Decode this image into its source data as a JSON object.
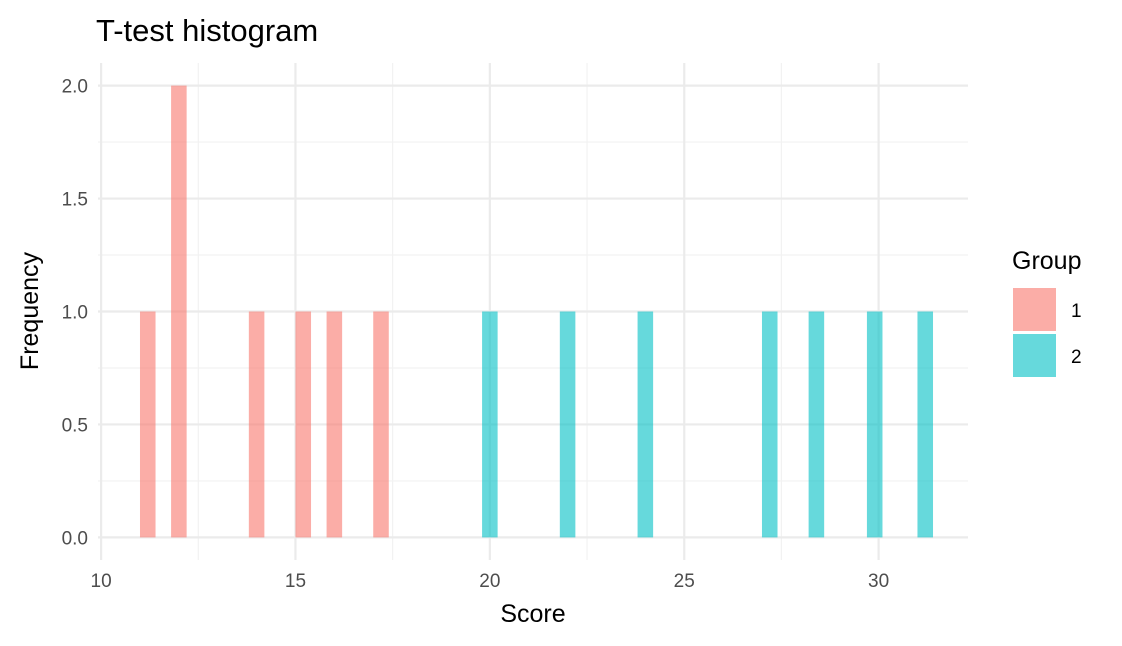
{
  "chart_data": {
    "type": "bar",
    "title": "T-test histogram",
    "xlabel": "Score",
    "ylabel": "Frequency",
    "xlim": [
      9.92,
      32.3
    ],
    "ylim": [
      -0.1,
      2.1
    ],
    "x_ticks": [
      10,
      15,
      20,
      25,
      30
    ],
    "x_minor_ticks": [
      12.5,
      17.5,
      22.5,
      27.5
    ],
    "y_ticks": [
      0.0,
      0.5,
      1.0,
      1.5,
      2.0
    ],
    "y_tick_labels": [
      "0.0",
      "0.5",
      "1.0",
      "1.5",
      "2.0"
    ],
    "y_minor_ticks": [
      0.25,
      0.75,
      1.25,
      1.75
    ],
    "bin_width": 0.4,
    "grid": true,
    "legend": {
      "title": "Group",
      "position": "right"
    },
    "series": [
      {
        "name": "1",
        "color": "#F8766D",
        "bins": [
          {
            "x": 11.2,
            "count": 1
          },
          {
            "x": 12.0,
            "count": 2
          },
          {
            "x": 14.0,
            "count": 1
          },
          {
            "x": 15.2,
            "count": 1
          },
          {
            "x": 16.0,
            "count": 1
          },
          {
            "x": 17.2,
            "count": 1
          }
        ]
      },
      {
        "name": "2",
        "color": "#00BFC4",
        "bins": [
          {
            "x": 20.0,
            "count": 1
          },
          {
            "x": 22.0,
            "count": 1
          },
          {
            "x": 24.0,
            "count": 1
          },
          {
            "x": 27.2,
            "count": 1
          },
          {
            "x": 28.4,
            "count": 1
          },
          {
            "x": 29.9,
            "count": 1
          },
          {
            "x": 31.2,
            "count": 1
          }
        ]
      }
    ]
  }
}
